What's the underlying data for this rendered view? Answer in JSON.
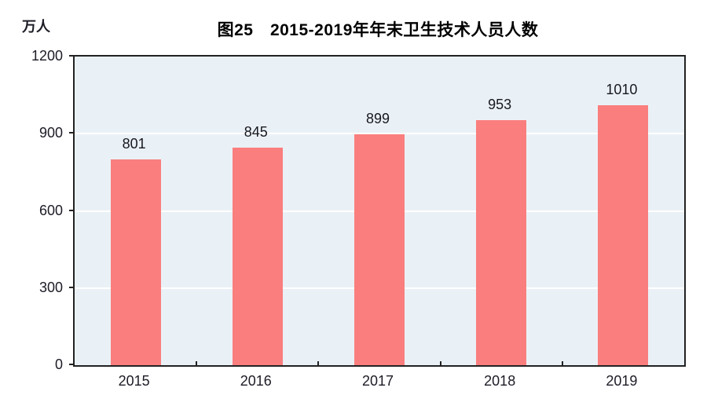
{
  "chart_data": {
    "type": "bar",
    "title": "图25　2015-2019年年末卫生技术人员人数",
    "unit_label": "万人",
    "categories": [
      "2015",
      "2016",
      "2017",
      "2018",
      "2019"
    ],
    "values": [
      801,
      845,
      899,
      953,
      1010
    ],
    "y_ticks": [
      0,
      300,
      600,
      900,
      1200
    ],
    "ylim": [
      0,
      1200
    ],
    "grid": true,
    "legend": "none",
    "bar_color": "#fa7e7e",
    "plot_bg_color": "#eaf1f6",
    "gridline_color": "#ffffff",
    "axis_color": "#222222",
    "text_color": "#1c1c26"
  }
}
